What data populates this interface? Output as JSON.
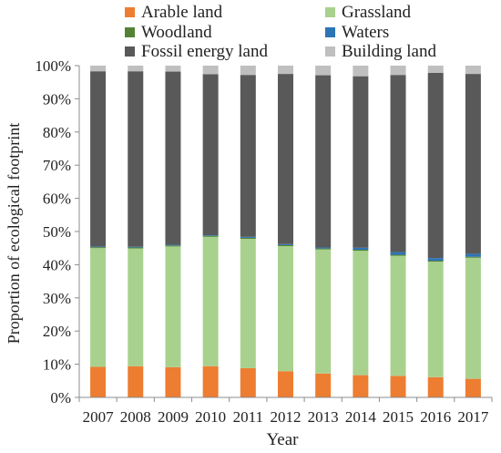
{
  "chart_data": {
    "type": "bar",
    "stacked": true,
    "percent": true,
    "title": "",
    "xlabel": "Year",
    "ylabel": "Proportion of ecological footprint",
    "ylim": [
      0,
      100
    ],
    "y_ticks": [
      "0%",
      "10%",
      "20%",
      "30%",
      "40%",
      "50%",
      "60%",
      "70%",
      "80%",
      "90%",
      "100%"
    ],
    "categories": [
      "2007",
      "2008",
      "2009",
      "2010",
      "2011",
      "2012",
      "2013",
      "2014",
      "2015",
      "2016",
      "2017"
    ],
    "legend_position": "top",
    "series": [
      {
        "name": "Arable land",
        "color": "#ED7D31",
        "values": [
          9.2,
          9.4,
          9.1,
          9.4,
          8.8,
          7.9,
          7.2,
          6.7,
          6.5,
          6.1,
          5.6
        ]
      },
      {
        "name": "Grassland",
        "color": "#A9D18E",
        "values": [
          35.8,
          35.5,
          36.4,
          39.0,
          39.0,
          37.7,
          37.4,
          37.5,
          36.2,
          34.8,
          36.5
        ]
      },
      {
        "name": "Woodland",
        "color": "#548235",
        "values": [
          0.3,
          0.3,
          0.3,
          0.3,
          0.3,
          0.3,
          0.3,
          0.3,
          0.3,
          0.3,
          0.3
        ]
      },
      {
        "name": "Waters",
        "color": "#2E75B6",
        "values": [
          0.2,
          0.2,
          0.2,
          0.2,
          0.3,
          0.3,
          0.3,
          0.6,
          0.8,
          0.8,
          0.9
        ]
      },
      {
        "name": "Fossil energy land",
        "color": "#595959",
        "values": [
          52.8,
          52.9,
          52.2,
          48.5,
          48.8,
          51.3,
          51.9,
          51.7,
          53.4,
          55.8,
          54.2
        ]
      },
      {
        "name": "Building land",
        "color": "#BFBFBF",
        "values": [
          1.7,
          1.7,
          1.8,
          2.6,
          2.8,
          2.5,
          2.9,
          3.2,
          2.8,
          2.2,
          2.5
        ]
      }
    ]
  }
}
